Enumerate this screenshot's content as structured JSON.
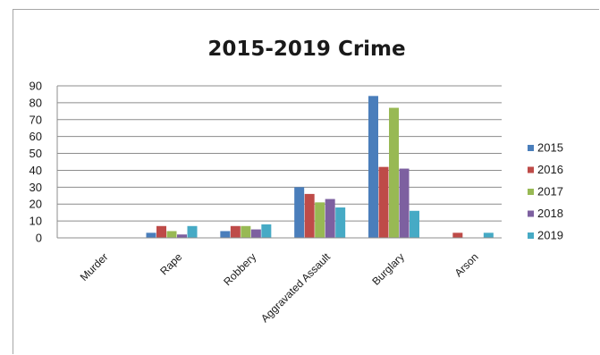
{
  "chart_data": {
    "type": "bar",
    "title": "2015-2019 Crime",
    "xlabel": "",
    "ylabel": "",
    "categories": [
      "Murder",
      "Rape",
      "Robbery",
      "Aggravated Assault",
      "Burglary",
      "Arson"
    ],
    "series": [
      {
        "name": "2015",
        "color": "#4a7ebb",
        "values": [
          0,
          3,
          4,
          30,
          84,
          0
        ]
      },
      {
        "name": "2016",
        "color": "#be4b48",
        "values": [
          0,
          7,
          7,
          26,
          42,
          3
        ]
      },
      {
        "name": "2017",
        "color": "#98b954",
        "values": [
          0,
          4,
          7,
          21,
          77,
          0
        ]
      },
      {
        "name": "2018",
        "color": "#7d60a0",
        "values": [
          0,
          2,
          5,
          23,
          41,
          0
        ]
      },
      {
        "name": "2019",
        "color": "#46aac5",
        "values": [
          0,
          7,
          8,
          18,
          16,
          3
        ]
      }
    ],
    "ylim": [
      0,
      90
    ],
    "yticks": [
      0,
      10,
      20,
      30,
      40,
      50,
      60,
      70,
      80,
      90
    ],
    "grid": true,
    "legend": "right"
  }
}
